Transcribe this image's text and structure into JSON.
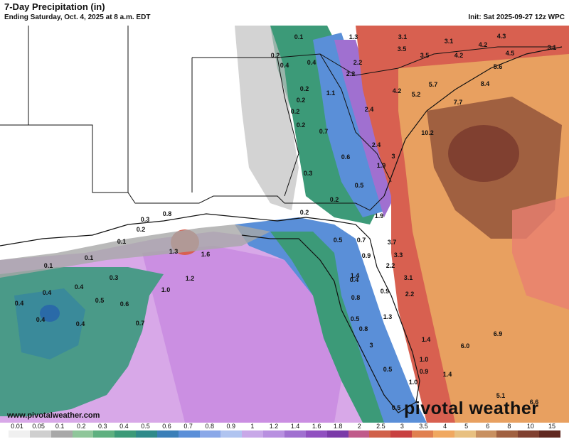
{
  "header": {
    "title": "7-Day Precipitation (in)",
    "subtitle": "Ending Saturday, Oct. 4, 2025 at 8 a.m. EDT",
    "init": "Init: Sat 2025-09-27 12z WPC"
  },
  "map_labels": [
    {
      "text": "0.1",
      "pos": "north-georgia-1"
    },
    {
      "text": "1.3",
      "pos": "north-sc-1"
    },
    {
      "text": "3.1",
      "pos": "nc-1"
    },
    {
      "text": "3.1",
      "pos": "nc-2"
    },
    {
      "text": "4.3",
      "pos": "nc-3"
    },
    {
      "text": "4.2",
      "pos": "nc-4"
    },
    {
      "text": "3.1",
      "pos": "nc-5"
    },
    {
      "text": "3.5",
      "pos": "nc-6"
    },
    {
      "text": "3.5",
      "pos": "nc-7"
    },
    {
      "text": "4.2",
      "pos": "nc-8"
    },
    {
      "text": "4.5",
      "pos": "nc-9"
    },
    {
      "text": "0.2",
      "pos": "ga-1"
    },
    {
      "text": "0.4",
      "pos": "ga-2"
    },
    {
      "text": "0.4",
      "pos": "ga-3"
    },
    {
      "text": "2.2",
      "pos": "sc-1"
    },
    {
      "text": "2.2",
      "pos": "sc-2"
    },
    {
      "text": "5.6",
      "pos": "nc-10"
    },
    {
      "text": "8.4",
      "pos": "nc-11"
    },
    {
      "text": "5.7",
      "pos": "sc-3"
    },
    {
      "text": "0.2",
      "pos": "ga-4"
    },
    {
      "text": "1.1",
      "pos": "ga-5"
    },
    {
      "text": "4.2",
      "pos": "sc-4"
    },
    {
      "text": "5.2",
      "pos": "sc-5"
    },
    {
      "text": "0.2",
      "pos": "ga-6"
    },
    {
      "text": "0.2",
      "pos": "ga-7"
    },
    {
      "text": "2.4",
      "pos": "sc-6"
    },
    {
      "text": "7.7",
      "pos": "sc-7"
    },
    {
      "text": "0.2",
      "pos": "ga-8"
    },
    {
      "text": "0.7",
      "pos": "ga-9"
    },
    {
      "text": "10.2",
      "pos": "sc-8"
    },
    {
      "text": "2.4",
      "pos": "ga-10"
    },
    {
      "text": "3",
      "pos": "ga-11"
    },
    {
      "text": "0.6",
      "pos": "ga-12"
    },
    {
      "text": "1.9",
      "pos": "ga-13"
    },
    {
      "text": "0.3",
      "pos": "ga-14"
    },
    {
      "text": "0.5",
      "pos": "ga-15"
    },
    {
      "text": "0.2",
      "pos": "fl-1"
    },
    {
      "text": "0.2",
      "pos": "fl-2"
    },
    {
      "text": "1.9",
      "pos": "fl-3"
    },
    {
      "text": "0.3",
      "pos": "fl-4"
    },
    {
      "text": "0.8",
      "pos": "fl-5"
    },
    {
      "text": "0.2",
      "pos": "fl-6"
    },
    {
      "text": "0.1",
      "pos": "la-1"
    },
    {
      "text": "0.5",
      "pos": "fl-7"
    },
    {
      "text": "0.7",
      "pos": "fl-8"
    },
    {
      "text": "3.7",
      "pos": "fl-9"
    },
    {
      "text": "1.3",
      "pos": "gulf-1"
    },
    {
      "text": "1.6",
      "pos": "gulf-2"
    },
    {
      "text": "0.9",
      "pos": "fl-10"
    },
    {
      "text": "3.3",
      "pos": "fl-11"
    },
    {
      "text": "0.1",
      "pos": "gulf-3"
    },
    {
      "text": "0.1",
      "pos": "gulf-4"
    },
    {
      "text": "2.2",
      "pos": "fl-12"
    },
    {
      "text": "1.2",
      "pos": "gulf-5"
    },
    {
      "text": "0.3",
      "pos": "gulf-6"
    },
    {
      "text": "1.4",
      "pos": "fl-13"
    },
    {
      "text": "3.1",
      "pos": "fl-14"
    },
    {
      "text": "0.4",
      "pos": "gulf-7"
    },
    {
      "text": "0.4",
      "pos": "gulf-8"
    },
    {
      "text": "0.4",
      "pos": "fl-15"
    },
    {
      "text": "1.0",
      "pos": "gulf-9"
    },
    {
      "text": "0.9",
      "pos": "fl-16"
    },
    {
      "text": "2.2",
      "pos": "fl-17"
    },
    {
      "text": "0.4",
      "pos": "gulf-10"
    },
    {
      "text": "0.5",
      "pos": "gulf-11"
    },
    {
      "text": "0.6",
      "pos": "gulf-12"
    },
    {
      "text": "0.8",
      "pos": "fl-18"
    },
    {
      "text": "0.4",
      "pos": "gulf-13"
    },
    {
      "text": "0.4",
      "pos": "gulf-14"
    },
    {
      "text": "0.7",
      "pos": "gulf-15"
    },
    {
      "text": "0.5",
      "pos": "fl-19"
    },
    {
      "text": "1.3",
      "pos": "fl-20"
    },
    {
      "text": "0.8",
      "pos": "fl-21"
    },
    {
      "text": "6.9",
      "pos": "atl-1"
    },
    {
      "text": "1.4",
      "pos": "fl-22"
    },
    {
      "text": "3",
      "pos": "fl-23"
    },
    {
      "text": "6.0",
      "pos": "atl-2"
    },
    {
      "text": "1.0",
      "pos": "fl-24"
    },
    {
      "text": "0.5",
      "pos": "fl-25"
    },
    {
      "text": "0.9",
      "pos": "fl-26"
    },
    {
      "text": "1.4",
      "pos": "fl-27"
    },
    {
      "text": "1.0",
      "pos": "fl-28"
    },
    {
      "text": "5.1",
      "pos": "atl-3"
    },
    {
      "text": "6.6",
      "pos": "atl-4"
    },
    {
      "text": "0.5",
      "pos": "fl-29"
    }
  ],
  "credit": "www.pivotalweather.com",
  "brand": "pivotal weather",
  "legend": {
    "ticks": [
      "0.01",
      "0.05",
      "0.1",
      "0.2",
      "0.3",
      "0.4",
      "0.5",
      "0.6",
      "0.7",
      "0.8",
      "0.9",
      "1",
      "1.2",
      "1.4",
      "1.6",
      "1.8",
      "2",
      "2.5",
      "3",
      "3.5",
      "4",
      "5",
      "6",
      "8",
      "10",
      "15"
    ],
    "colors": [
      "#f0f0f0",
      "#cfcfcf",
      "#a8a8a8",
      "#8fc69a",
      "#5fb080",
      "#3c9a78",
      "#2f8a8a",
      "#3a7fb8",
      "#5a8fd8",
      "#8aa8e8",
      "#b0c4f0",
      "#c8a8e8",
      "#b890e0",
      "#a070d0",
      "#9050c0",
      "#7a3aa8",
      "#c05a8a",
      "#d0604a",
      "#c84040",
      "#e08050",
      "#f0a860",
      "#e8c080",
      "#c89060",
      "#a06040",
      "#804030",
      "#602820"
    ]
  },
  "colors": {
    "land": "#ffffff",
    "ocean_pink": "#d8a8e8",
    "ocean_blue": "#7aa8d8",
    "ocean_teal": "#4a9a88",
    "atlantic_red": "#d86050",
    "atlantic_orange": "#e8a060",
    "atlantic_brown": "#8a5030",
    "grey": "#a8a8a8"
  }
}
